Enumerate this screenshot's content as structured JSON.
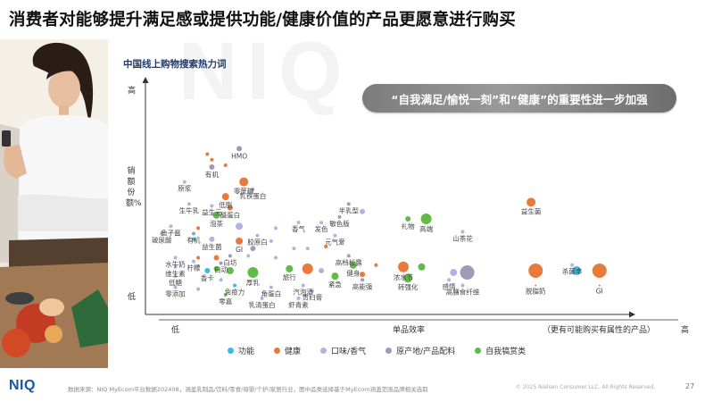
{
  "page": {
    "title": "消费者对能够提升满足感或提供功能/健康价值的产品更愿意进行购买",
    "logo": "NIQ",
    "source": "数据来源：NIQ MyEcom平台数据202408，涵盖乳制品/饮料/零食/母婴/个护/家居行业，图中品类选择基于MyEcom涵盖范围品牌相关选取",
    "copyright": "© 2025 Nielsen Consumer LLC. All Rights Reserved.",
    "page_number": "27",
    "callout": "“自我满足/愉悦一刻”和“健康”的重要性进一步加强",
    "watermark": "NIQ",
    "photo_alt": "woman-with-phone-photo"
  },
  "chart_data": {
    "type": "scatter",
    "title": "中国线上购物搜索热力词",
    "xlabel": "单品效率",
    "ylabel": "销额份额%",
    "x_low": "低",
    "x_high": "高",
    "x_high_note": "（更有可能购买有属性的产品）",
    "y_low": "低",
    "y_high": "高",
    "xlim": [
      0,
      100
    ],
    "ylim": [
      0,
      100
    ],
    "grid": false,
    "legend_position": "bottom",
    "categories": [
      {
        "key": "func",
        "name": "功能",
        "color": "#3bb9e3"
      },
      {
        "key": "health",
        "name": "健康",
        "color": "#ea7a3c"
      },
      {
        "key": "taste",
        "name": "口味/香气",
        "color": "#b4b2e0"
      },
      {
        "key": "origin",
        "name": "原产地/产品配料",
        "color": "#9c9cb5"
      },
      {
        "key": "self",
        "name": "自我犒赏类",
        "color": "#62bb46"
      }
    ],
    "points": [
      {
        "label": "HMO",
        "cat": "origin",
        "x": 19,
        "y": 81,
        "r": 3
      },
      {
        "label": "",
        "cat": "health",
        "x": 12,
        "y": 78,
        "r": 2
      },
      {
        "label": "",
        "cat": "health",
        "x": 13,
        "y": 75,
        "r": 2
      },
      {
        "label": "有机",
        "cat": "origin",
        "x": 13,
        "y": 71,
        "r": 3
      },
      {
        "label": "",
        "cat": "health",
        "x": 16,
        "y": 72,
        "r": 2
      },
      {
        "label": "原浆",
        "cat": "taste",
        "x": 7,
        "y": 63,
        "r": 2
      },
      {
        "label": "零蔗糖",
        "cat": "health",
        "x": 20,
        "y": 63,
        "r": 5
      },
      {
        "label": "乳铁蛋白",
        "cat": "taste",
        "x": 22,
        "y": 59,
        "r": 2
      },
      {
        "label": "低脂",
        "cat": "health",
        "x": 16,
        "y": 55,
        "r": 4
      },
      {
        "label": "生牛乳",
        "cat": "taste",
        "x": 8,
        "y": 51,
        "r": 2
      },
      {
        "label": "益生元",
        "cat": "taste",
        "x": 13,
        "y": 50,
        "r": 2
      },
      {
        "label": "醋蛋白",
        "cat": "health",
        "x": 17,
        "y": 49,
        "r": 3
      },
      {
        "label": "半乳型",
        "cat": "origin",
        "x": 43,
        "y": 51,
        "r": 2
      },
      {
        "label": "",
        "cat": "taste",
        "x": 46,
        "y": 47,
        "r": 3
      },
      {
        "label": "敏色版",
        "cat": "origin",
        "x": 41,
        "y": 44,
        "r": 2
      },
      {
        "label": "泡茶",
        "cat": "self",
        "x": 14,
        "y": 45,
        "r": 4
      },
      {
        "label": "香气",
        "cat": "taste",
        "x": 32,
        "y": 41,
        "r": 2
      },
      {
        "label": "发色",
        "cat": "taste",
        "x": 37,
        "y": 41,
        "r": 2
      },
      {
        "label": "礼物",
        "cat": "self",
        "x": 56,
        "y": 43,
        "r": 3
      },
      {
        "label": "高端",
        "cat": "self",
        "x": 60,
        "y": 43,
        "r": 6
      },
      {
        "label": "益生菌",
        "cat": "health",
        "x": 83,
        "y": 52,
        "r": 5
      },
      {
        "label": "山茶花",
        "cat": "taste",
        "x": 68,
        "y": 36,
        "r": 2
      },
      {
        "label": "鱼子酱",
        "cat": "taste",
        "x": 4,
        "y": 39,
        "r": 2
      },
      {
        "label": "",
        "cat": "health",
        "x": 10,
        "y": 38,
        "r": 2
      },
      {
        "label": "有机",
        "cat": "origin",
        "x": 9,
        "y": 35,
        "r": 2
      },
      {
        "label": "",
        "cat": "taste",
        "x": 19,
        "y": 39,
        "r": 4
      },
      {
        "label": "",
        "cat": "taste",
        "x": 27,
        "y": 38,
        "r": 2
      },
      {
        "label": "玻尿酸",
        "cat": "taste",
        "x": 2,
        "y": 35,
        "r": 2
      },
      {
        "label": "益生菌",
        "cat": "taste",
        "x": 13,
        "y": 32,
        "r": 3
      },
      {
        "label": "",
        "cat": "func",
        "x": 9,
        "y": 32,
        "r": 2
      },
      {
        "label": "GI",
        "cat": "health",
        "x": 19,
        "y": 31,
        "r": 4
      },
      {
        "label": "胶原白",
        "cat": "taste",
        "x": 23,
        "y": 34,
        "r": 2
      },
      {
        "label": "",
        "cat": "taste",
        "x": 26,
        "y": 31,
        "r": 2
      },
      {
        "label": "元气爱",
        "cat": "taste",
        "x": 40,
        "y": 34,
        "r": 2
      },
      {
        "label": "",
        "cat": "health",
        "x": 38,
        "y": 28,
        "r": 2
      },
      {
        "label": "",
        "cat": "origin",
        "x": 22,
        "y": 27,
        "r": 3
      },
      {
        "label": "",
        "cat": "taste",
        "x": 31,
        "y": 27,
        "r": 2
      },
      {
        "label": "",
        "cat": "taste",
        "x": 34,
        "y": 27,
        "r": 2
      },
      {
        "label": "水牛奶",
        "cat": "taste",
        "x": 5,
        "y": 22,
        "r": 2
      },
      {
        "label": "",
        "cat": "health",
        "x": 10,
        "y": 22,
        "r": 2
      },
      {
        "label": "柠檬",
        "cat": "taste",
        "x": 9,
        "y": 20,
        "r": 2
      },
      {
        "label": "",
        "cat": "health",
        "x": 14,
        "y": 22,
        "r": 3
      },
      {
        "label": "自动",
        "cat": "origin",
        "x": 15,
        "y": 19,
        "r": 2
      },
      {
        "label": "白坊",
        "cat": "origin",
        "x": 17,
        "y": 23,
        "r": 2
      },
      {
        "label": "",
        "cat": "taste",
        "x": 21,
        "y": 23,
        "r": 2
      },
      {
        "label": "",
        "cat": "taste",
        "x": 27,
        "y": 22,
        "r": 2
      },
      {
        "label": "高档松露",
        "cat": "origin",
        "x": 43,
        "y": 23,
        "r": 2
      },
      {
        "label": "维生素",
        "cat": "taste",
        "x": 5,
        "y": 17,
        "r": 2
      },
      {
        "label": "香卡",
        "cat": "func",
        "x": 12,
        "y": 15,
        "r": 3
      },
      {
        "label": "",
        "cat": "self",
        "x": 14,
        "y": 16,
        "r": 3
      },
      {
        "label": "",
        "cat": "self",
        "x": 17,
        "y": 15,
        "r": 4
      },
      {
        "label": "厚乳",
        "cat": "self",
        "x": 22,
        "y": 14,
        "r": 6
      },
      {
        "label": "旅行",
        "cat": "self",
        "x": 30,
        "y": 16,
        "r": 4
      },
      {
        "label": "",
        "cat": "health",
        "x": 34,
        "y": 16,
        "r": 6
      },
      {
        "label": "",
        "cat": "taste",
        "x": 37,
        "y": 15,
        "r": 3
      },
      {
        "label": "紧急",
        "cat": "self",
        "x": 40,
        "y": 12,
        "r": 4
      },
      {
        "label": "健身",
        "cat": "self",
        "x": 44,
        "y": 18,
        "r": 4
      },
      {
        "label": "",
        "cat": "health",
        "x": 46,
        "y": 13,
        "r": 3
      },
      {
        "label": "高能强",
        "cat": "origin",
        "x": 46,
        "y": 10,
        "r": 2
      },
      {
        "label": "",
        "cat": "health",
        "x": 49,
        "y": 18,
        "r": 2
      },
      {
        "label": "浓水节",
        "cat": "health",
        "x": 55,
        "y": 17,
        "r": 6
      },
      {
        "label": "",
        "cat": "self",
        "x": 59,
        "y": 17,
        "r": 4
      },
      {
        "label": "转强化",
        "cat": "self",
        "x": 56,
        "y": 11,
        "r": 5
      },
      {
        "label": "",
        "cat": "taste",
        "x": 66,
        "y": 14,
        "r": 4
      },
      {
        "label": "",
        "cat": "origin",
        "x": 69,
        "y": 14,
        "r": 8
      },
      {
        "label": "感情",
        "cat": "taste",
        "x": 65,
        "y": 10,
        "r": 2
      },
      {
        "label": "高膳食纤维",
        "cat": "taste",
        "x": 68,
        "y": 7,
        "r": 2
      },
      {
        "label": "杀菌率",
        "cat": "taste",
        "x": 92,
        "y": 18,
        "r": 2
      },
      {
        "label": "",
        "cat": "health",
        "x": 84,
        "y": 15,
        "r": 8
      },
      {
        "label": "脱脂奶",
        "cat": "health",
        "x": 84,
        "y": 7,
        "r": 1
      },
      {
        "label": "",
        "cat": "func",
        "x": 93,
        "y": 15,
        "r": 5
      },
      {
        "label": "",
        "cat": "health",
        "x": 98,
        "y": 15,
        "r": 8
      },
      {
        "label": "GI",
        "cat": "health",
        "x": 98,
        "y": 7,
        "r": 1
      },
      {
        "label": "低糖",
        "cat": "taste",
        "x": 5,
        "y": 12,
        "r": 2
      },
      {
        "label": "零添加",
        "cat": "taste",
        "x": 5,
        "y": 6,
        "r": 2
      },
      {
        "label": "免疫力",
        "cat": "func",
        "x": 18,
        "y": 7,
        "r": 2
      },
      {
        "label": "角蛋白",
        "cat": "taste",
        "x": 26,
        "y": 6,
        "r": 2
      },
      {
        "label": "汽泡酒",
        "cat": "taste",
        "x": 33,
        "y": 7,
        "r": 2
      },
      {
        "label": "零嘉",
        "cat": "self",
        "x": 16,
        "y": 2,
        "r": 2
      },
      {
        "label": "乳清蛋白",
        "cat": "taste",
        "x": 24,
        "y": 0,
        "r": 2
      },
      {
        "label": "虾青素",
        "cat": "taste",
        "x": 32,
        "y": 0,
        "r": 2
      },
      {
        "label": "贵妇膏",
        "cat": "taste",
        "x": 35,
        "y": 4,
        "r": 2
      },
      {
        "label": "",
        "cat": "taste",
        "x": 15,
        "y": 10,
        "r": 2
      },
      {
        "label": "",
        "cat": "taste",
        "x": 10,
        "y": 5,
        "r": 2
      }
    ]
  }
}
